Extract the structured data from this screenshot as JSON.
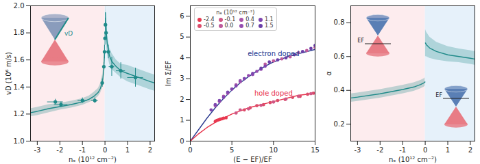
{
  "chart_data": [
    {
      "type": "scatter",
      "xlabel": "nₑ (10¹² cm⁻²)",
      "ylabel": "vD (10⁶ m/s)",
      "xlim": [
        -3.3,
        2.2
      ],
      "ylim": [
        1.0,
        2.0
      ],
      "xticks": [
        -3,
        -2,
        -1,
        0,
        1,
        2
      ],
      "yticks": [
        {
          "value": 1,
          "label": "1.0"
        },
        1.2,
        1.4,
        1.6,
        1.8,
        {
          "value": 2,
          "label": "2.0"
        }
      ],
      "regions": [
        {
          "x1": -3.3,
          "x2": 0,
          "color": "#fdecee"
        },
        {
          "x1": 0,
          "x2": 2.2,
          "color": "#e6f1fa"
        }
      ],
      "points": {
        "color": "#1f8a89",
        "marker": "circle",
        "x": [
          -2.2,
          -1.95,
          -1.0,
          -0.45,
          -0.12,
          -0.05,
          -0.02,
          0.0,
          0.02,
          0.05,
          0.15,
          0.3,
          0.7,
          1.35
        ],
        "y": [
          1.29,
          1.27,
          1.3,
          1.3,
          1.43,
          1.55,
          1.66,
          1.76,
          1.86,
          1.8,
          1.66,
          1.55,
          1.52,
          1.47
        ],
        "xerr": [
          0.35,
          0.3,
          0.2,
          0.15,
          0.05,
          0.03,
          0.02,
          0.02,
          0.03,
          0.04,
          0.08,
          0.12,
          0.2,
          0.35
        ],
        "yerr": [
          0.02,
          0.02,
          0.02,
          0.02,
          0.03,
          0.03,
          0.05,
          0.05,
          0.05,
          0.05,
          0.05,
          0.07,
          0.06,
          0.07
        ]
      },
      "fit": {
        "color": "#1f8a89",
        "branches": [
          {
            "x": [
              -3.3,
              -3,
              -2.5,
              -2,
              -1.5,
              -1,
              -0.7,
              -0.5,
              -0.3,
              -0.2,
              -0.1,
              -0.05,
              -0.02
            ],
            "y": [
              1.21,
              1.22,
              1.24,
              1.255,
              1.27,
              1.29,
              1.31,
              1.33,
              1.36,
              1.39,
              1.45,
              1.53,
              1.65
            ],
            "y_low": [
              1.18,
              1.19,
              1.21,
              1.23,
              1.245,
              1.265,
              1.285,
              1.3,
              1.33,
              1.355,
              1.4,
              1.47,
              1.57
            ],
            "y_high": [
              1.24,
              1.25,
              1.27,
              1.28,
              1.295,
              1.315,
              1.335,
              1.36,
              1.39,
              1.425,
              1.5,
              1.59,
              1.73
            ]
          },
          {
            "x": [
              0.02,
              0.05,
              0.1,
              0.2,
              0.3,
              0.5,
              0.7,
              1,
              1.5,
              2,
              2.2
            ],
            "y": [
              1.95,
              1.82,
              1.72,
              1.63,
              1.59,
              1.55,
              1.52,
              1.5,
              1.47,
              1.44,
              1.43
            ],
            "y_low": [
              1.86,
              1.74,
              1.65,
              1.57,
              1.53,
              1.5,
              1.47,
              1.44,
              1.41,
              1.38,
              1.37
            ],
            "y_high": [
              2.04,
              1.9,
              1.79,
              1.69,
              1.65,
              1.6,
              1.57,
              1.56,
              1.53,
              1.5,
              1.49
            ]
          }
        ]
      },
      "annotations": [
        "vD"
      ]
    },
    {
      "type": "scatter",
      "xlabel": "(E − EF)/EF",
      "ylabel": "Im Σ/EF",
      "xlim": [
        0,
        15
      ],
      "ylim": [
        0,
        6.5
      ],
      "xticks": [
        0,
        5,
        10,
        15
      ],
      "yticks": [
        0,
        1,
        2,
        3,
        4,
        5,
        6
      ],
      "legend": "top",
      "legend_title": "nₑ (10¹² cm⁻²)",
      "series": [
        {
          "name": "-2.4",
          "color": "#e8384f",
          "x": [
            3.0,
            3.2,
            3.4,
            3.6,
            3.8,
            4.0,
            4.3
          ],
          "y": [
            0.95,
            1.0,
            1.02,
            1.05,
            1.07,
            1.1,
            1.12
          ]
        },
        {
          "name": "-0.5",
          "color": "#dc4b6a",
          "x": [
            6.5,
            7.2,
            8,
            8.8,
            9.6,
            10.5,
            11.4,
            12.3,
            13.2,
            14.1,
            14.8
          ],
          "y": [
            1.5,
            1.6,
            1.7,
            1.75,
            1.85,
            1.95,
            2.0,
            2.1,
            2.15,
            2.25,
            2.3
          ]
        },
        {
          "name": "-0.1",
          "color": "#cf5685",
          "x": [
            5.5,
            6,
            7,
            8.5,
            10,
            11.5,
            13,
            14.5
          ],
          "y": [
            1.35,
            1.5,
            1.55,
            1.72,
            1.88,
            2.02,
            2.15,
            2.28
          ]
        },
        {
          "name": "0.0",
          "color": "#bd5a9c",
          "x": [
            9,
            10,
            11,
            12,
            13,
            14,
            15
          ],
          "y": [
            3.7,
            3.85,
            3.95,
            4.05,
            4.25,
            4.35,
            4.5
          ]
        },
        {
          "name": "0.4",
          "color": "#a954aa",
          "x": [
            3,
            3.5,
            4,
            4.5,
            5,
            5.5,
            6
          ],
          "y": [
            1.7,
            1.9,
            2.15,
            2.3,
            2.5,
            2.7,
            2.85
          ]
        },
        {
          "name": "0.7",
          "color": "#944db0",
          "x": [
            6,
            6.5,
            7,
            7.5,
            8,
            8.5
          ],
          "y": [
            2.9,
            3.0,
            3.15,
            3.2,
            3.35,
            3.45
          ]
        },
        {
          "name": "1.1",
          "color": "#7f46b0",
          "x": [
            2.5,
            3,
            3.5,
            4,
            4.5,
            5,
            5.5,
            6.5,
            7.5,
            9
          ],
          "y": [
            1.5,
            1.75,
            1.95,
            2.1,
            2.35,
            2.5,
            2.65,
            3.0,
            3.25,
            3.6
          ]
        },
        {
          "name": "1.5",
          "color": "#6a3fa8",
          "x": [
            8.5,
            9.5,
            10.5,
            11.5,
            12.5,
            13.5,
            14.5,
            15
          ],
          "y": [
            3.5,
            3.8,
            3.9,
            4.0,
            4.15,
            4.3,
            4.45,
            4.6
          ]
        }
      ],
      "curves": [
        {
          "label": "electron doped",
          "color": "#2b3a8f",
          "x": [
            0,
            1,
            2,
            3,
            4,
            5,
            6,
            7,
            8,
            9,
            10,
            11,
            12,
            13,
            14,
            15
          ],
          "y": [
            0,
            0.55,
            1.1,
            1.6,
            2.05,
            2.45,
            2.8,
            3.1,
            3.35,
            3.6,
            3.8,
            3.95,
            4.1,
            4.2,
            4.3,
            4.4
          ]
        },
        {
          "label": "hole doped",
          "color": "#e8334a",
          "x": [
            0,
            1,
            2,
            3,
            4,
            5,
            6,
            7,
            8,
            9,
            10,
            11,
            12,
            13,
            14,
            15
          ],
          "y": [
            0,
            0.35,
            0.65,
            0.9,
            1.1,
            1.3,
            1.45,
            1.6,
            1.7,
            1.8,
            1.9,
            2.0,
            2.1,
            2.2,
            2.25,
            2.3
          ]
        }
      ]
    },
    {
      "type": "line",
      "xlabel": "nₑ (10¹² cm⁻²)",
      "ylabel": "α",
      "xlim": [
        -3.3,
        2.2
      ],
      "ylim": [
        0.1,
        0.9
      ],
      "xticks": [
        -3,
        -2,
        -1,
        0,
        1,
        2
      ],
      "yticks": [
        0.2,
        0.4,
        0.6,
        0.8
      ],
      "regions": [
        {
          "x1": -3.3,
          "x2": 0,
          "color": "#fdecee"
        },
        {
          "x1": 0,
          "x2": 2.2,
          "color": "#e6f1fa"
        }
      ],
      "fit": {
        "color": "#1f8a89",
        "branches": [
          {
            "x": [
              -3.3,
              -3,
              -2,
              -1,
              -0.5,
              -0.2,
              -0.05,
              -0.01
            ],
            "y": [
              0.355,
              0.36,
              0.38,
              0.405,
              0.42,
              0.435,
              0.445,
              0.45
            ],
            "y_low": [
              0.33,
              0.335,
              0.355,
              0.38,
              0.395,
              0.41,
              0.42,
              0.425
            ],
            "y_high": [
              0.38,
              0.385,
              0.405,
              0.43,
              0.445,
              0.46,
              0.47,
              0.475
            ]
          },
          {
            "x": [
              0.01,
              0.05,
              0.2,
              0.5,
              1,
              1.5,
              2,
              2.2
            ],
            "y": [
              0.68,
              0.67,
              0.65,
              0.63,
              0.61,
              0.6,
              0.59,
              0.585
            ],
            "y_low": [
              0.6,
              0.6,
              0.59,
              0.58,
              0.57,
              0.565,
              0.555,
              0.55
            ],
            "y_high": [
              0.76,
              0.745,
              0.715,
              0.685,
              0.66,
              0.645,
              0.635,
              0.63
            ]
          }
        ]
      },
      "annotations": [
        "EF",
        "EF"
      ]
    }
  ]
}
